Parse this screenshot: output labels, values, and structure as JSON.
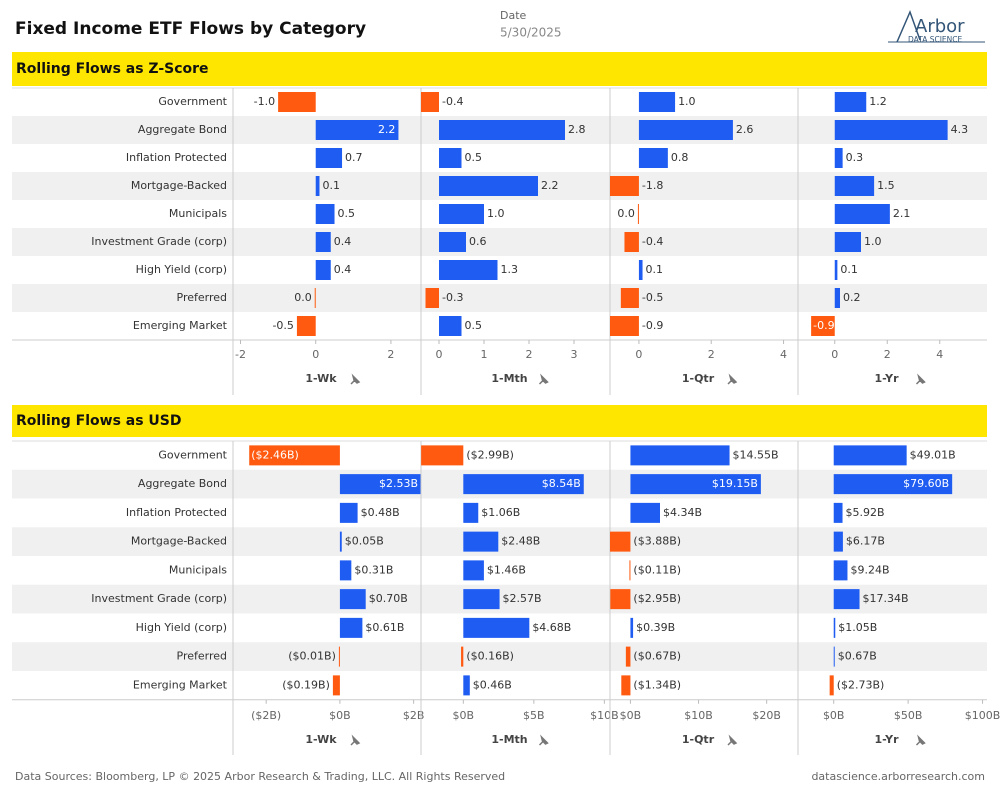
{
  "header": {
    "title": "Fixed Income ETF Flows by Category",
    "date_label": "Date",
    "date": "5/30/2025",
    "logo": "Arbor",
    "logo_sub": "DATA SCIENCE"
  },
  "footer": {
    "left": "Data Sources: Bloomberg, LP © 2025 Arbor Research & Trading, LLC. All Rights Reserved",
    "right": "datascience.arborresearch.com"
  },
  "chart_data": [
    {
      "type": "bar",
      "orientation": "horizontal",
      "title": "Rolling Flows as Z-Score",
      "categories": [
        "Government",
        "Aggregate Bond",
        "Inflation Protected",
        "Mortgage-Backed",
        "Municipals",
        "Investment Grade (corp)",
        "High Yield (corp)",
        "Preferred",
        "Emerging Market"
      ],
      "color": "#1f5cf2",
      "negative_color": "#ff5a0f",
      "series": [
        {
          "name": "1-Wk",
          "values": [
            -1.0,
            2.2,
            0.7,
            0.1,
            0.5,
            0.4,
            0.4,
            0.0,
            -0.5
          ],
          "value_labels": [
            "-1.0",
            "2.2",
            "0.7",
            "0.1",
            "0.5",
            "0.4",
            "0.4",
            "0.0",
            "-0.5"
          ],
          "xlim": [
            -2.2,
            2.8
          ],
          "xticks": [
            -2,
            0,
            2
          ]
        },
        {
          "name": "1-Mth",
          "values": [
            -0.4,
            2.8,
            0.5,
            2.2,
            1.0,
            0.6,
            1.3,
            -0.3,
            0.5
          ],
          "value_labels": [
            "-0.4",
            "2.8",
            "0.5",
            "2.2",
            "1.0",
            "0.6",
            "1.3",
            "-0.3",
            "0.5"
          ],
          "xlim": [
            -0.4,
            3.8
          ],
          "xticks": [
            0,
            1,
            2,
            3
          ]
        },
        {
          "name": "1-Qtr",
          "values": [
            1.0,
            2.6,
            0.8,
            -1.8,
            0.0,
            -0.4,
            0.1,
            -0.5,
            -0.9
          ],
          "value_labels": [
            "1.0",
            "2.6",
            "0.8",
            "-1.8",
            "0.0",
            "-0.4",
            "0.1",
            "-0.5",
            "-0.9"
          ],
          "xlim": [
            -0.8,
            4.4
          ],
          "xticks": [
            0,
            2,
            4
          ]
        },
        {
          "name": "1-Yr",
          "values": [
            1.2,
            4.3,
            0.3,
            1.5,
            2.1,
            1.0,
            0.1,
            0.2,
            -0.9
          ],
          "value_labels": [
            "1.2",
            "4.3",
            "0.3",
            "1.5",
            "2.1",
            "1.0",
            "0.1",
            "0.2",
            "-0.9"
          ],
          "xlim": [
            -1.4,
            5.8
          ],
          "xticks": [
            0,
            2,
            4
          ]
        }
      ]
    },
    {
      "type": "bar",
      "orientation": "horizontal",
      "title": "Rolling Flows as USD",
      "categories": [
        "Government",
        "Aggregate Bond",
        "Inflation Protected",
        "Mortgage-Backed",
        "Municipals",
        "Investment Grade (corp)",
        "High Yield (corp)",
        "Preferred",
        "Emerging Market"
      ],
      "color": "#1f5cf2",
      "negative_color": "#ff5a0f",
      "series": [
        {
          "name": "1-Wk",
          "values": [
            -2.46,
            2.53,
            0.48,
            0.05,
            0.31,
            0.7,
            0.61,
            -0.01,
            -0.19
          ],
          "value_labels": [
            "($2.46B)",
            "$2.53B",
            "$0.48B",
            "$0.05B",
            "$0.31B",
            "$0.70B",
            "$0.61B",
            "($0.01B)",
            "($0.19B)"
          ],
          "xlim": [
            -2.9,
            2.2
          ],
          "xticks": [
            {
              "value": -2,
              "label": "($2B)"
            },
            {
              "value": 0,
              "label": "$0B"
            },
            {
              "value": 2,
              "label": "$2B"
            }
          ]
        },
        {
          "name": "1-Mth",
          "values": [
            -2.99,
            8.54,
            1.06,
            2.48,
            1.46,
            2.57,
            4.68,
            -0.16,
            0.46
          ],
          "value_labels": [
            "($2.99B)",
            "$8.54B",
            "$1.06B",
            "$2.48B",
            "$1.46B",
            "$2.57B",
            "$4.68B",
            "($0.16B)",
            "$0.46B"
          ],
          "xlim": [
            -3,
            10.4
          ],
          "xticks": [
            {
              "value": 0,
              "label": "$0B"
            },
            {
              "value": 5,
              "label": "$5B"
            },
            {
              "value": 10,
              "label": "$10B"
            }
          ]
        },
        {
          "name": "1-Qtr",
          "values": [
            14.55,
            19.15,
            4.34,
            -3.88,
            -0.11,
            -2.95,
            0.39,
            -0.67,
            -1.34
          ],
          "value_labels": [
            "$14.55B",
            "$19.15B",
            "$4.34B",
            "($3.88B)",
            "($0.11B)",
            "($2.95B)",
            "$0.39B",
            "($0.67B)",
            "($1.34B)"
          ],
          "xlim": [
            -3,
            24.6
          ],
          "xticks": [
            {
              "value": 0,
              "label": "$0B"
            },
            {
              "value": 10,
              "label": "$10B"
            },
            {
              "value": 20,
              "label": "$20B"
            }
          ]
        },
        {
          "name": "1-Yr",
          "values": [
            49.01,
            79.6,
            5.92,
            6.17,
            9.24,
            17.34,
            1.05,
            0.67,
            -2.73
          ],
          "value_labels": [
            "$49.01B",
            "$79.60B",
            "$5.92B",
            "$6.17B",
            "$9.24B",
            "$17.34B",
            "$1.05B",
            "$0.67B",
            "($2.73B)"
          ],
          "xlim": [
            -24,
            103
          ],
          "xticks": [
            {
              "value": 0,
              "label": "$0B"
            },
            {
              "value": 50,
              "label": "$50B"
            },
            {
              "value": 100,
              "label": "$100B"
            }
          ]
        }
      ]
    }
  ]
}
